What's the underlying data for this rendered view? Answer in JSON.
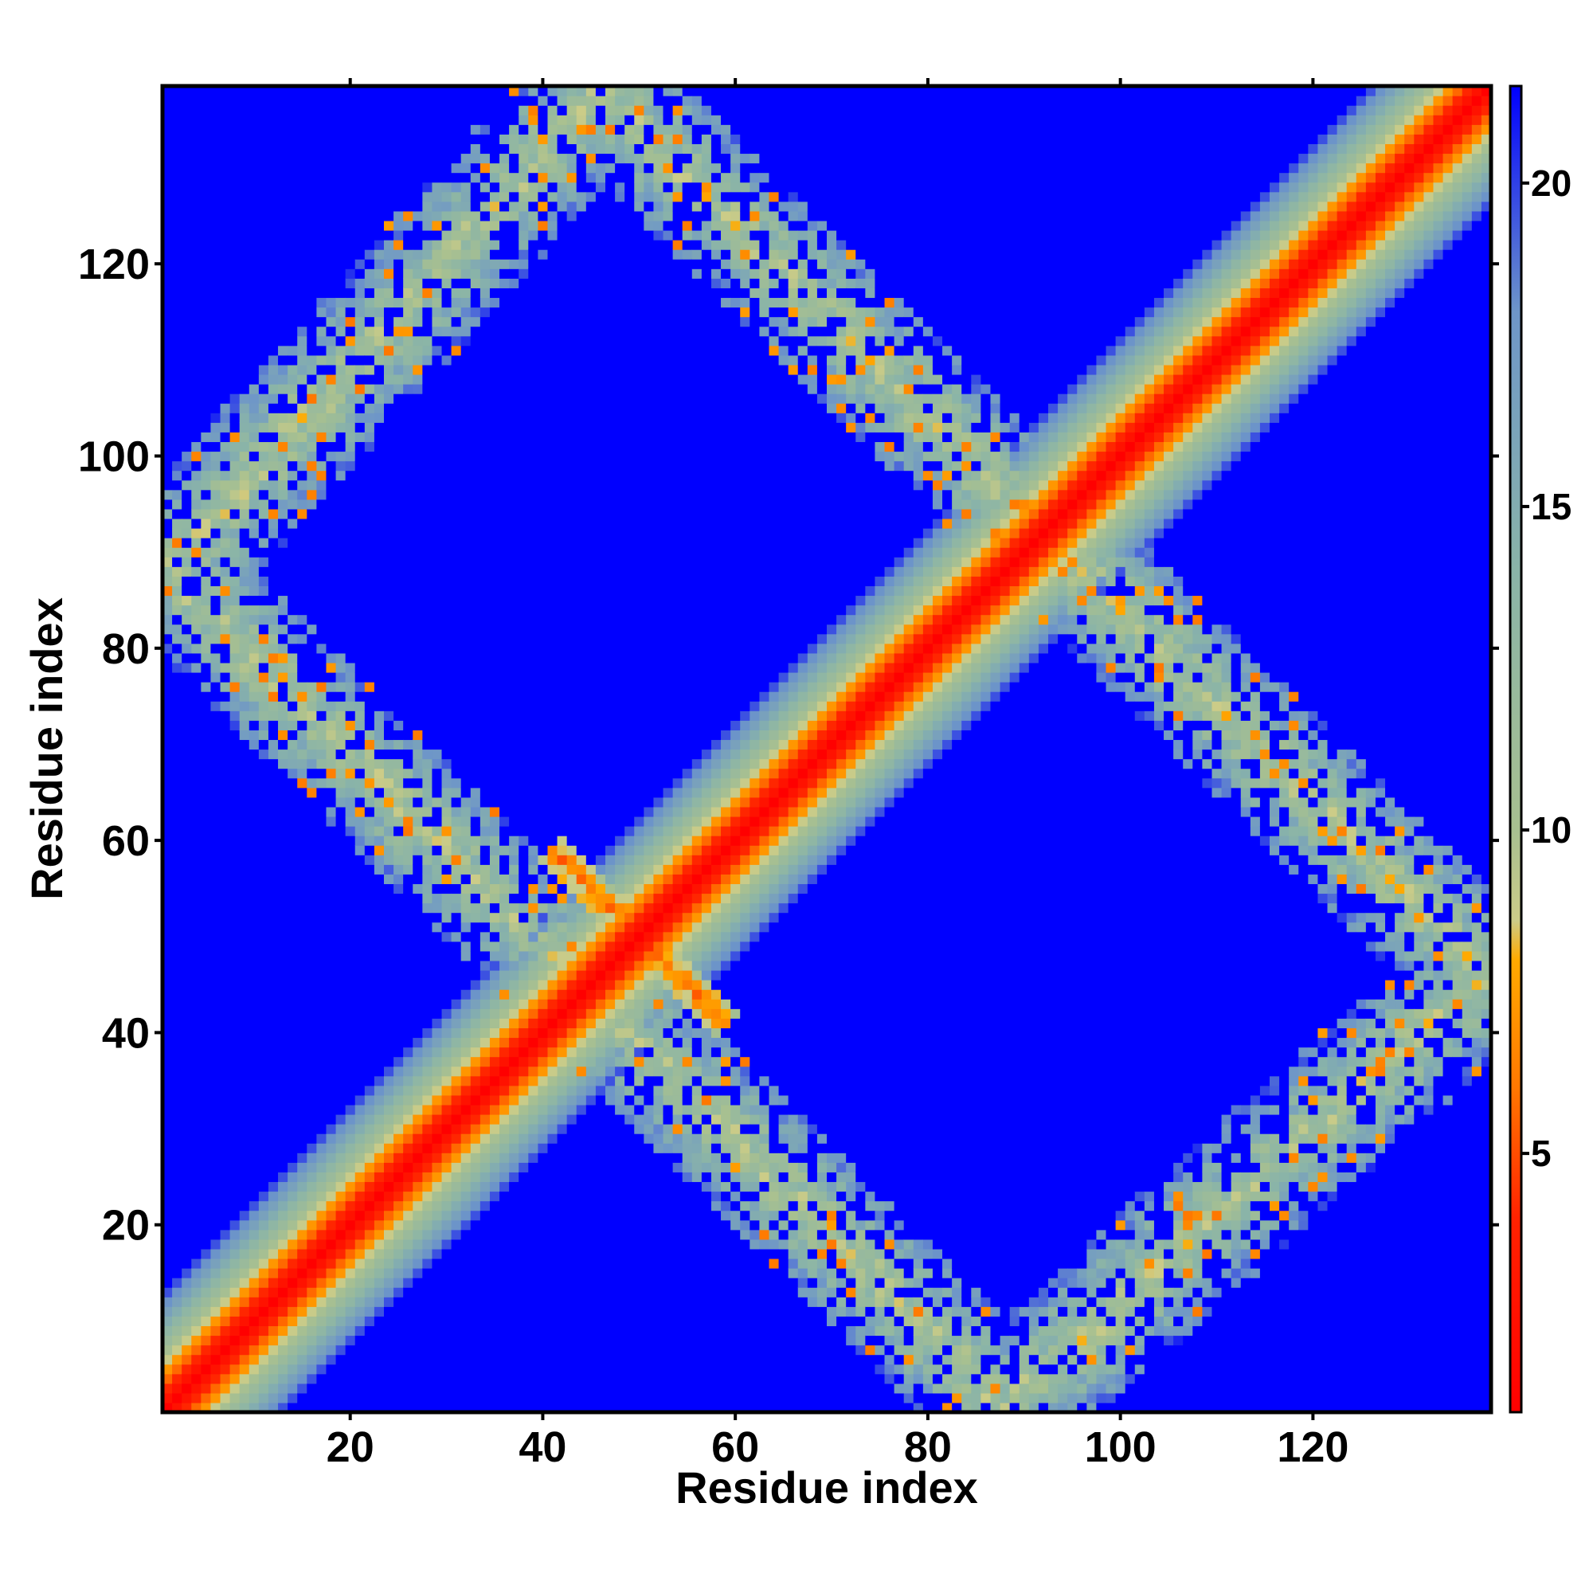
{
  "chart_data": {
    "type": "heatmap",
    "title": "",
    "xlabel": "Residue index",
    "ylabel": "Residue index",
    "xlim": [
      1,
      138
    ],
    "ylim": [
      1,
      138
    ],
    "x_ticks": [
      20,
      40,
      60,
      80,
      100,
      120
    ],
    "y_ticks": [
      20,
      40,
      60,
      80,
      100,
      120
    ],
    "colorbar": {
      "ticks": [
        5,
        10,
        15,
        20
      ],
      "range": [
        1,
        21.5
      ],
      "stops": [
        {
          "value": 1.0,
          "color": "#ff0000"
        },
        {
          "value": 4.0,
          "color": "#ff2200"
        },
        {
          "value": 6.0,
          "color": "#ff7700"
        },
        {
          "value": 8.0,
          "color": "#ffaa00"
        },
        {
          "value": 8.6,
          "color": "#cccc88"
        },
        {
          "value": 10.0,
          "color": "#a8c090"
        },
        {
          "value": 14.0,
          "color": "#8ab4a8"
        },
        {
          "value": 18.0,
          "color": "#6e96c8"
        },
        {
          "value": 21.5,
          "color": "#0000ff"
        }
      ]
    },
    "background_value": 21.5,
    "structure": {
      "description": "Symmetric distance map: main diagonal band (near-contact), anti-diagonal contact band crossing at residue ~50, and a diamond-shaped ring of medium distances.",
      "diagonal_band_halfwidth": 12,
      "crossing_residue": 50,
      "ring_corners": [
        [
          1,
          88
        ],
        [
          46,
          138
        ],
        [
          88,
          1
        ],
        [
          138,
          46
        ]
      ]
    },
    "grid": false,
    "legend": "colorbar-right"
  }
}
